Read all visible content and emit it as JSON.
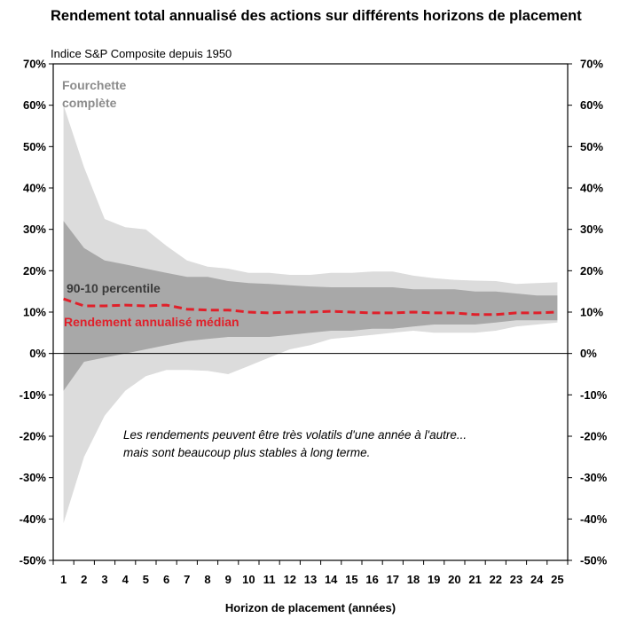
{
  "header": {
    "title": "Rendement total annualisé des actions sur différents horizons de placement",
    "subtitle": "Indice S&P Composite depuis 1950"
  },
  "chart_data": {
    "type": "area",
    "xlabel": "Horizon de placement (années)",
    "x": [
      1,
      2,
      3,
      4,
      5,
      6,
      7,
      8,
      9,
      10,
      11,
      12,
      13,
      14,
      15,
      16,
      17,
      18,
      19,
      20,
      21,
      22,
      23,
      24,
      25
    ],
    "ylim": [
      -50,
      70
    ],
    "yticks": [
      "-50%",
      "-40%",
      "-30%",
      "-20%",
      "-10%",
      "0%",
      "10%",
      "20%",
      "30%",
      "40%",
      "50%",
      "60%",
      "70%"
    ],
    "grid": false,
    "colors": {
      "full_range": "#dcdcdc",
      "p90_10": "#a8a8a8",
      "median": "#e0202a",
      "zero_line": "#000000"
    },
    "series": [
      {
        "name": "Fourchette complète",
        "role": "range_full",
        "upper": [
          60,
          45,
          32.5,
          30.5,
          30,
          26,
          22.5,
          21,
          20.5,
          19.5,
          19.5,
          19,
          19,
          19.5,
          19.5,
          19.8,
          19.8,
          18.8,
          18.2,
          17.8,
          17.6,
          17.5,
          16.8,
          17,
          17.2
        ],
        "lower": [
          -41,
          -25,
          -15,
          -9,
          -5.5,
          -4,
          -4,
          -4.2,
          -5,
          -3,
          -1,
          1,
          2,
          3.5,
          4,
          4.5,
          5,
          5.5,
          5,
          5,
          5,
          5.5,
          6.5,
          7,
          7.5
        ]
      },
      {
        "name": "90-10 percentile",
        "role": "range_p90_10",
        "upper": [
          32,
          25.5,
          22.5,
          21.5,
          20.5,
          19.5,
          18.5,
          18.5,
          17.5,
          17,
          16.8,
          16.5,
          16.2,
          16,
          16,
          16,
          16,
          15.5,
          15.5,
          15.5,
          15,
          15,
          14.5,
          14,
          14
        ],
        "lower": [
          -9,
          -2,
          -1,
          0,
          1,
          2,
          3,
          3.5,
          4,
          4,
          4,
          4.5,
          5,
          5.5,
          5.5,
          6,
          6,
          6.5,
          7,
          7,
          7,
          7.5,
          8,
          8,
          8
        ]
      },
      {
        "name": "Rendement annualisé médian",
        "role": "median",
        "values": [
          13.2,
          11.5,
          11.5,
          11.7,
          11.5,
          11.7,
          10.7,
          10.5,
          10.5,
          10,
          9.8,
          10,
          10,
          10.2,
          10,
          9.8,
          9.8,
          10,
          9.8,
          9.8,
          9.4,
          9.4,
          9.8,
          9.8,
          10
        ]
      }
    ],
    "annotations": {
      "full_range_label_line1": "Fourchette",
      "full_range_label_line2": "complète",
      "p90_10_label": "90-10 percentile",
      "median_label": "Rendement annualisé médian",
      "note_line1": "Les rendements peuvent être très volatils d'une année à l'autre...",
      "note_line2": "mais sont beaucoup plus stables à long terme."
    }
  }
}
